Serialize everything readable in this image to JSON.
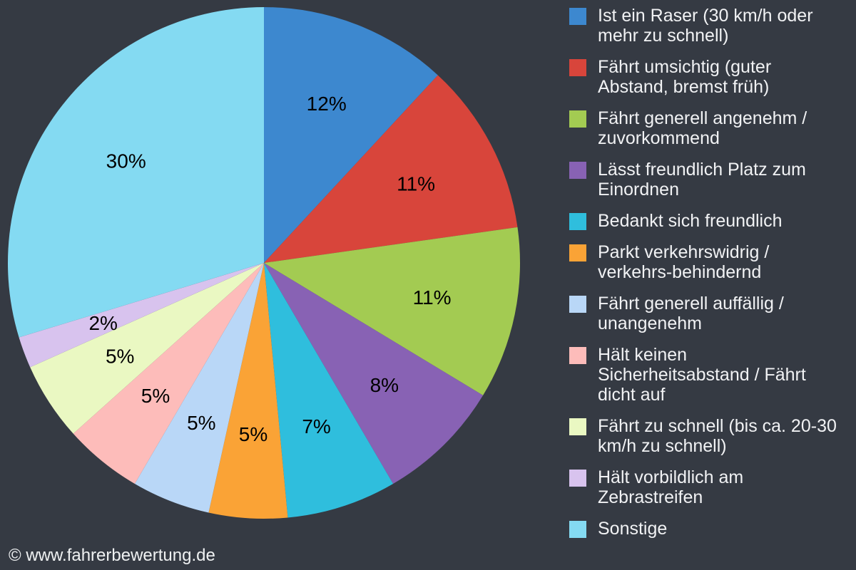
{
  "chart_data": {
    "type": "pie",
    "title": "",
    "unit": "%",
    "start_angle": "top",
    "direction": "clockwise",
    "legend_position": "right",
    "slices": [
      {
        "label": "Ist ein Raser (30 km/h oder mehr zu schnell)",
        "value": 12,
        "display": "12%",
        "color": "#3d88cf"
      },
      {
        "label": "Fährt umsichtig (guter Abstand, bremst früh)",
        "value": 11,
        "display": "11%",
        "color": "#d8453b"
      },
      {
        "label": "Fährt generell angenehm / zuvorkommend",
        "value": 11,
        "display": "11%",
        "color": "#a3cb52"
      },
      {
        "label": "Lässt freundlich Platz zum Einordnen",
        "value": 8,
        "display": "8%",
        "color": "#8862b4"
      },
      {
        "label": "Bedankt sich freundlich",
        "value": 7,
        "display": "7%",
        "color": "#2fbedd"
      },
      {
        "label": "Parkt verkehrswidrig / verkehrs-behindernd",
        "value": 5,
        "display": "5%",
        "color": "#faa336"
      },
      {
        "label": "Fährt generell auffällig / unangenehm",
        "value": 5,
        "display": "5%",
        "color": "#b9d7f7"
      },
      {
        "label": "Hält keinen Sicherheitsabstand / Fährt dicht auf",
        "value": 5,
        "display": "5%",
        "color": "#fdbcba"
      },
      {
        "label": "Fährt zu schnell (bis ca. 20-30 km/h zu schnell)",
        "value": 5,
        "display": "5%",
        "color": "#eaf8c2"
      },
      {
        "label": "Hält vorbildlich am Zebrastreifen",
        "value": 2,
        "display": "2%",
        "color": "#d8c3ee"
      },
      {
        "label": "Sonstige",
        "value": 30,
        "display": "30%",
        "color": "#84daf2"
      }
    ]
  },
  "footer": {
    "copyright": "© www.fahrerbewertung.de"
  },
  "theme": {
    "background": "#353a43",
    "legend_text_color": "#f1f2f4",
    "slice_label_color": "#000000"
  }
}
